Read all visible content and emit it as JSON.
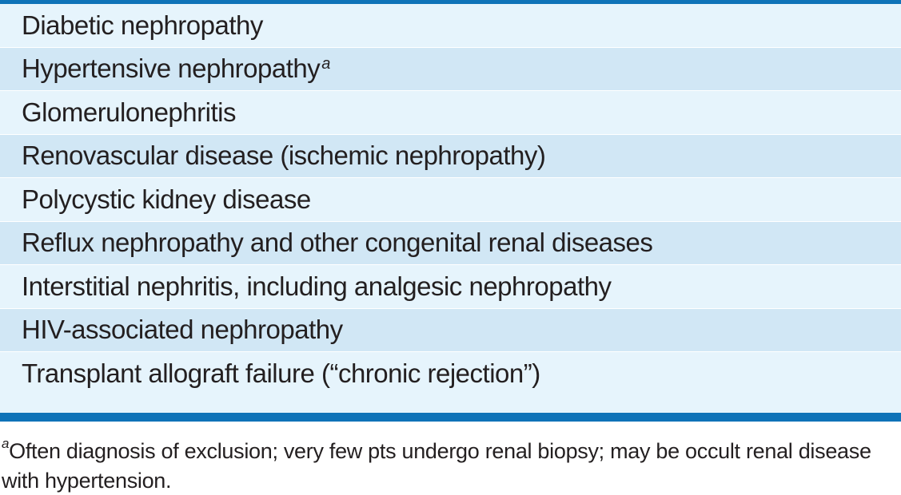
{
  "table": {
    "rows": [
      {
        "text": "Diabetic nephropathy",
        "marker": ""
      },
      {
        "text": "Hypertensive nephropathy",
        "marker": "a"
      },
      {
        "text": "Glomerulonephritis",
        "marker": ""
      },
      {
        "text": "Renovascular disease (ischemic nephropathy)",
        "marker": ""
      },
      {
        "text": "Polycystic kidney disease",
        "marker": ""
      },
      {
        "text": "Reflux nephropathy and other congenital renal diseases",
        "marker": ""
      },
      {
        "text": "Interstitial nephritis, including analgesic nephropathy",
        "marker": ""
      },
      {
        "text": "HIV-associated nephropathy",
        "marker": ""
      },
      {
        "text": "Transplant allograft failure (“chronic rejection”)",
        "marker": ""
      }
    ]
  },
  "footnote": {
    "marker": "a",
    "text": "Often diagnosis of exclusion; very few pts undergo renal biopsy; may be occult renal disease with hypertension."
  },
  "colors": {
    "rule": "#0f73b8",
    "row_light": "#e6f4fc",
    "row_dark": "#d1e7f5"
  }
}
